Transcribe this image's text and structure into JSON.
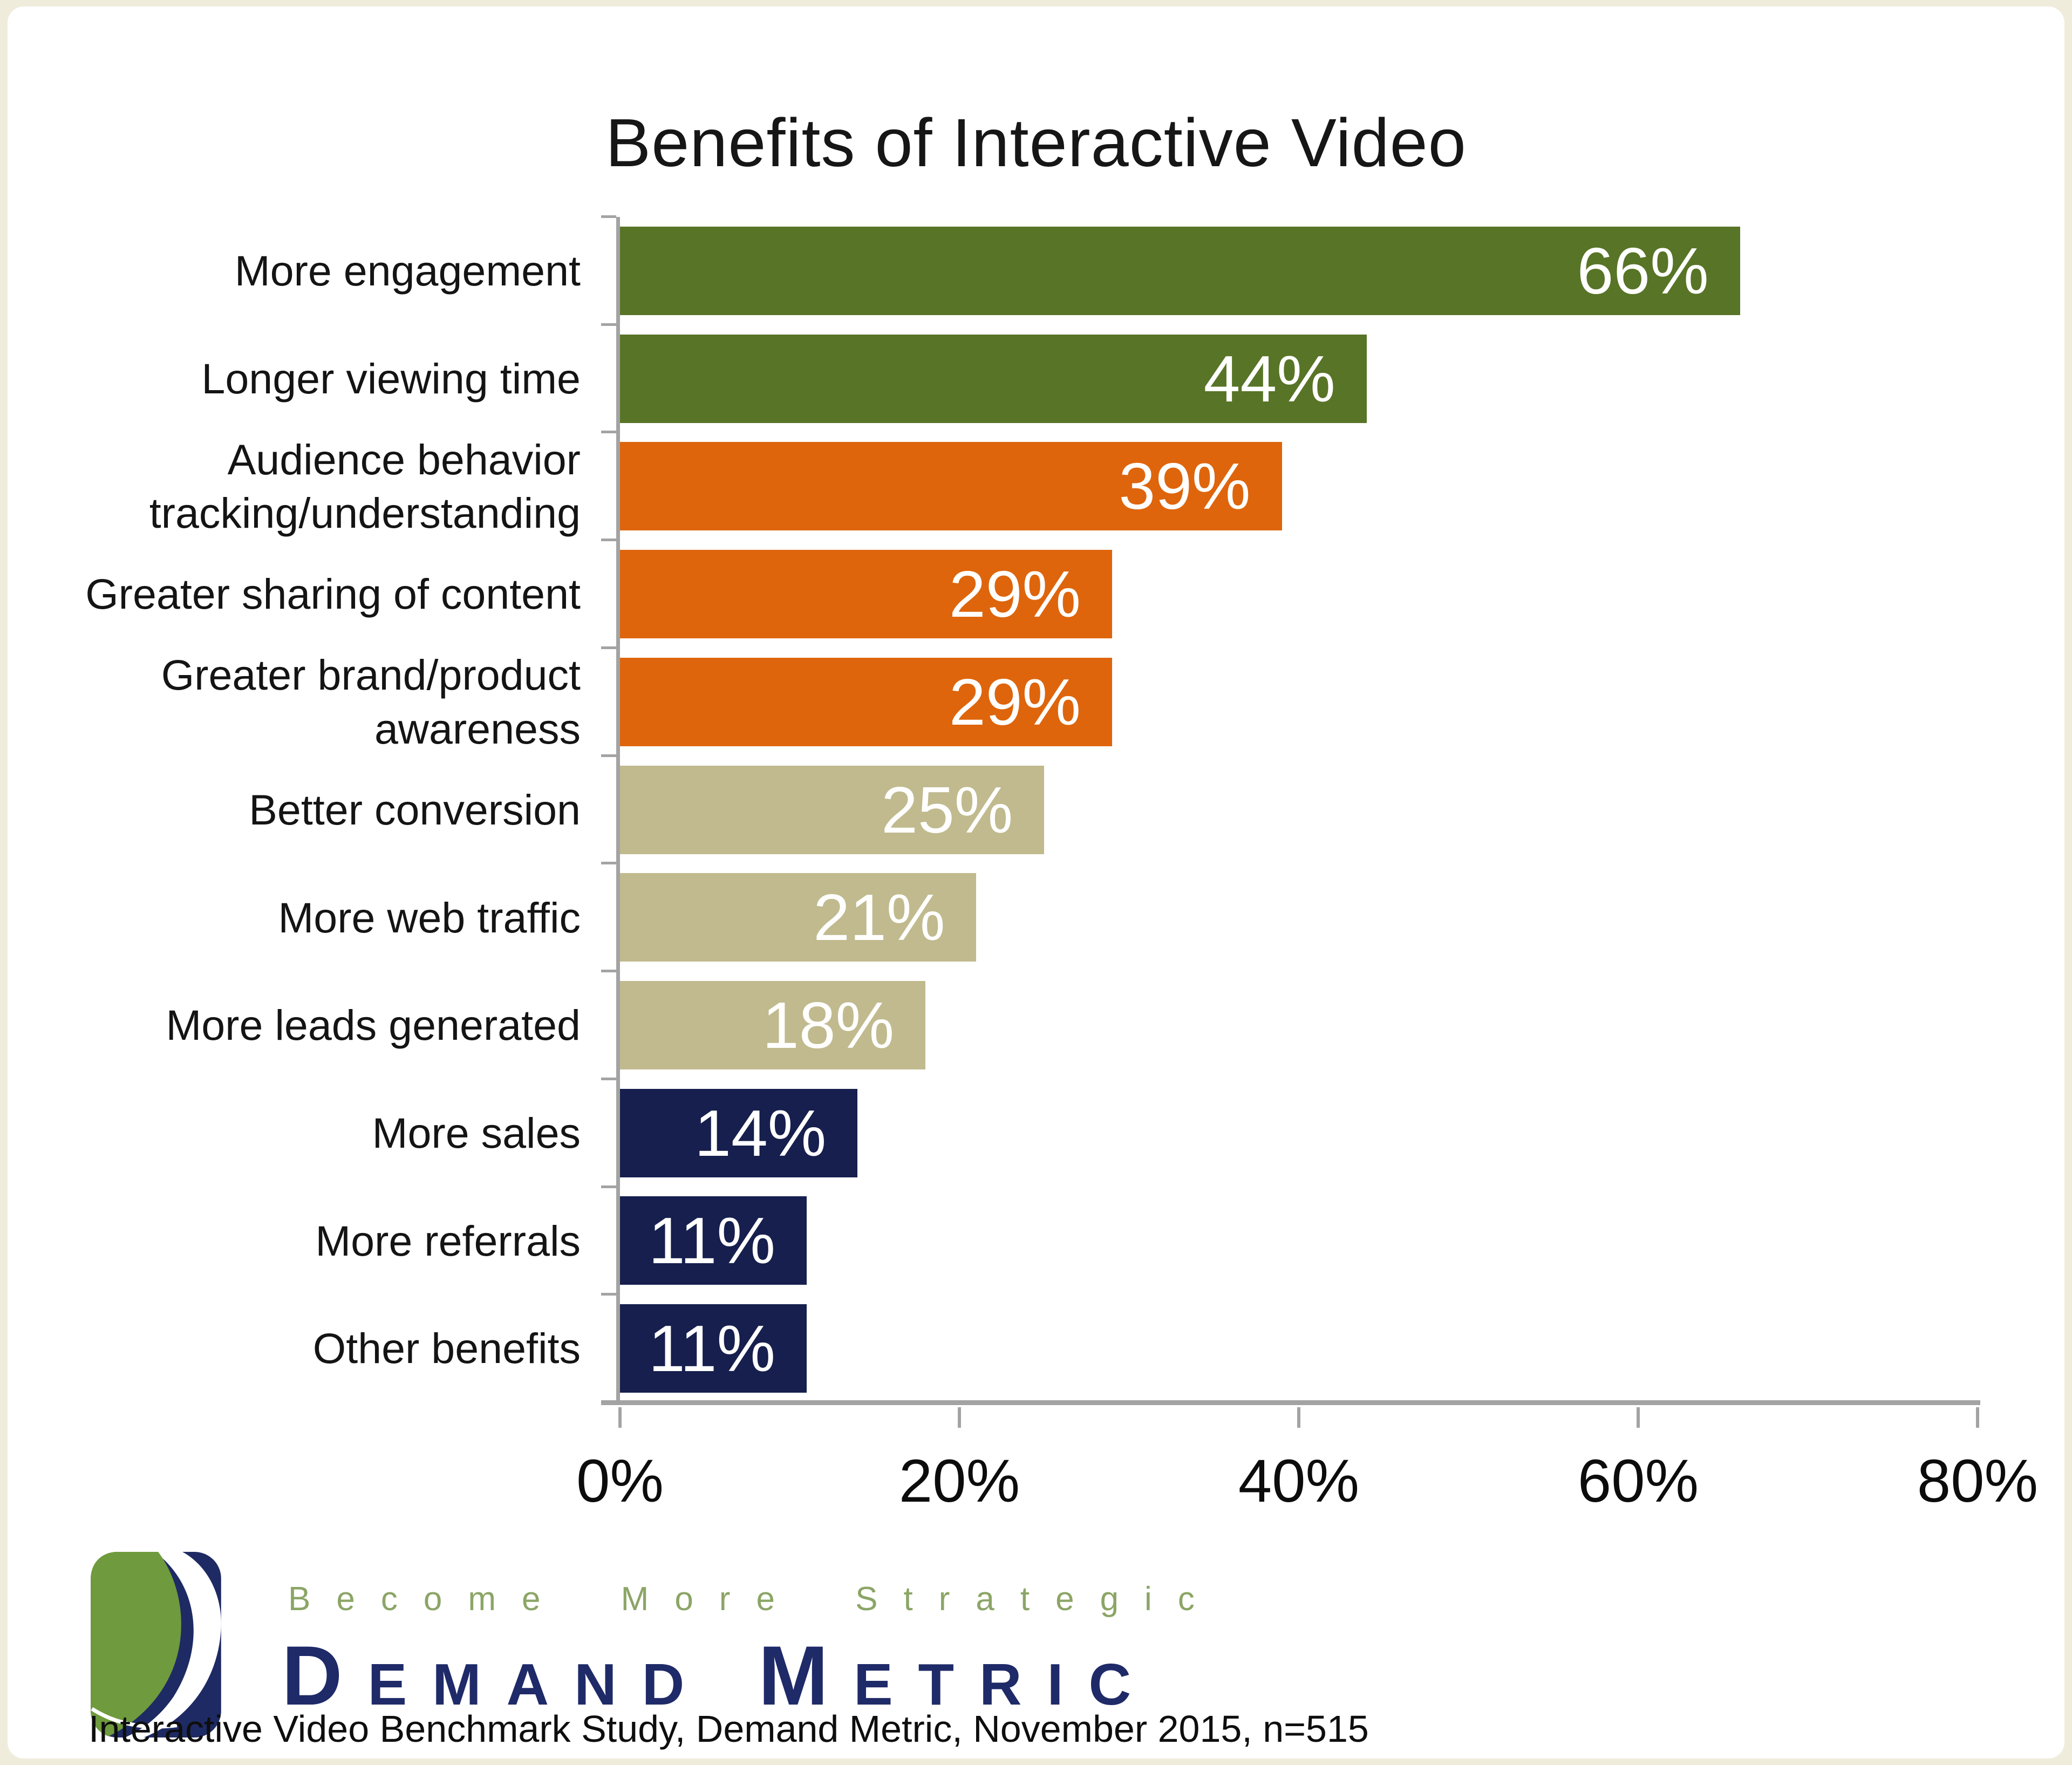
{
  "frame": {
    "border_color": "#efecdc",
    "canvas_color": "#ffffff"
  },
  "title": "Benefits of Interactive Video",
  "chart_data": {
    "type": "bar",
    "orientation": "horizontal",
    "title": "Benefits of Interactive Video",
    "xlabel": "",
    "ylabel": "",
    "grid": false,
    "legend": null,
    "x_axis": {
      "max": 80,
      "tick_values": [
        0,
        20,
        40,
        60,
        80
      ],
      "tick_labels": [
        "0%",
        "20%",
        "40%",
        "60%",
        "80%"
      ]
    },
    "axis_color": "#a3a3a3",
    "value_label_color": "#ffffff",
    "categories": [
      "More engagement",
      "Longer viewing time",
      "Audience behavior tracking/understanding",
      "Greater sharing of content",
      "Greater brand/product awareness",
      "Better conversion",
      "More web traffic",
      "More leads generated",
      "More sales",
      "More referrals",
      "Other benefits"
    ],
    "values": [
      66,
      44,
      39,
      29,
      29,
      25,
      21,
      18,
      14,
      11,
      11
    ],
    "rows": [
      {
        "label": "More engagement",
        "value": 66,
        "value_label": "66%",
        "color": "#587427"
      },
      {
        "label": "Longer viewing time",
        "value": 44,
        "value_label": "44%",
        "color": "#587427"
      },
      {
        "label": "Audience behavior tracking/understanding",
        "value": 39,
        "value_label": "39%",
        "color": "#de650c"
      },
      {
        "label": "Greater sharing of content",
        "value": 29,
        "value_label": "29%",
        "color": "#de650c"
      },
      {
        "label": "Greater brand/product awareness",
        "value": 29,
        "value_label": "29%",
        "color": "#de650c"
      },
      {
        "label": "Better conversion",
        "value": 25,
        "value_label": "25%",
        "color": "#c0ba8e"
      },
      {
        "label": "More web traffic",
        "value": 21,
        "value_label": "21%",
        "color": "#c0ba8e"
      },
      {
        "label": "More leads generated",
        "value": 18,
        "value_label": "18%",
        "color": "#c0ba8e"
      },
      {
        "label": "More sales",
        "value": 14,
        "value_label": "14%",
        "color": "#161f4d"
      },
      {
        "label": "More referrals",
        "value": 11,
        "value_label": "11%",
        "color": "#161f4d"
      },
      {
        "label": "Other benefits",
        "value": 11,
        "value_label": "11%",
        "color": "#161f4d"
      }
    ]
  },
  "branding": {
    "tagline": "Become More Strategic",
    "tagline_color": "#8ba566",
    "logo_text": "Demand Metric",
    "logo_text_color": "#1f2a68",
    "logo_icon_colors": {
      "navy": "#1e2a63",
      "green": "#6f9a3d",
      "white": "#ffffff"
    }
  },
  "source": "Interactive Video Benchmark Study, Demand Metric, November 2015, n=515"
}
